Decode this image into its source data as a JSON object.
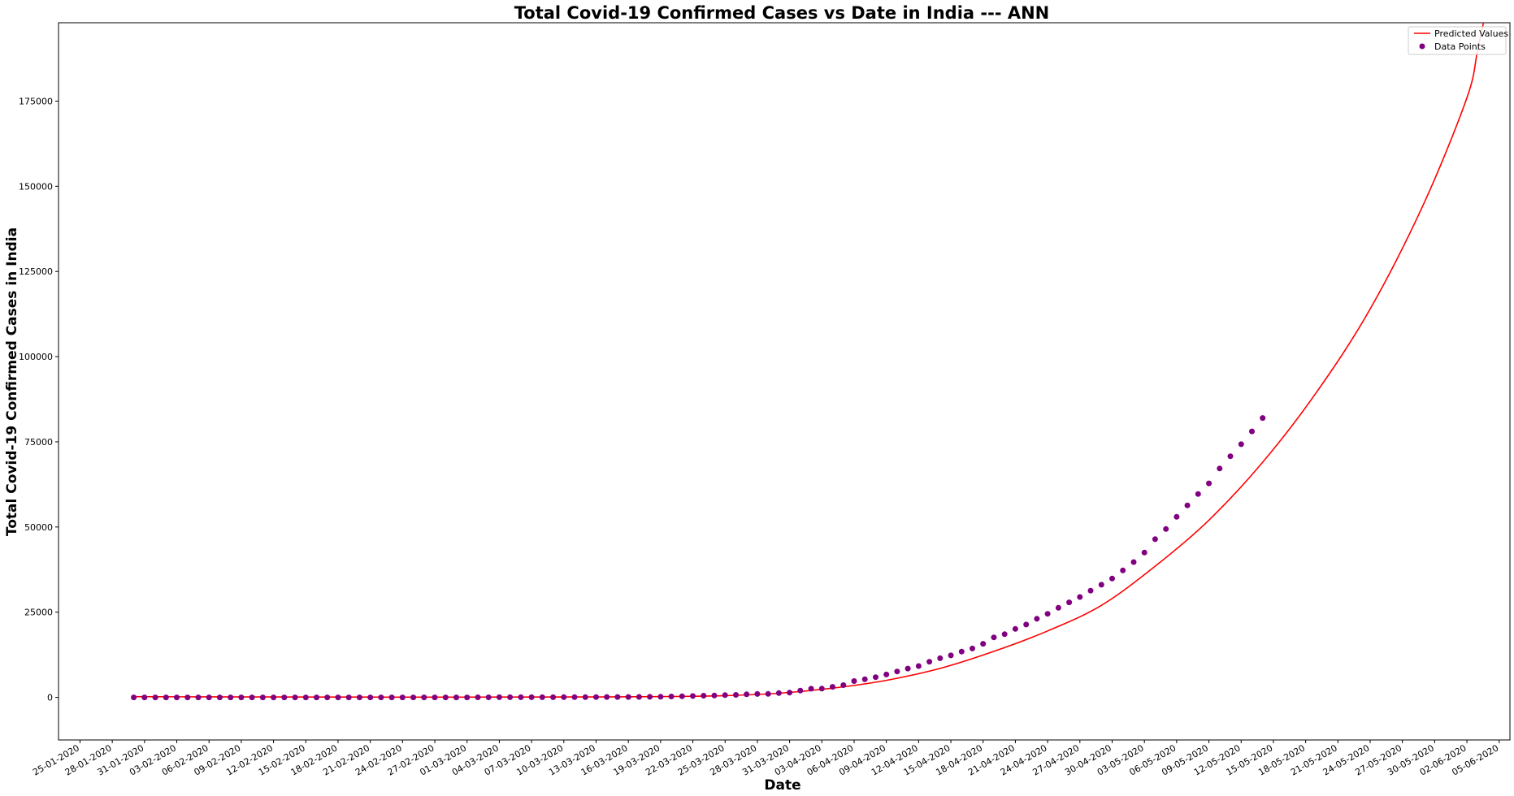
{
  "chart_data": {
    "type": "line",
    "title": "Total Covid-19 Confirmed Cases vs Date in India --- ANN",
    "xlabel": "Date",
    "ylabel": "Total Covid-19 Confirmed Cases in India",
    "x_range": [
      "2020-01-23",
      "2020-06-06"
    ],
    "ylim": [
      -12500,
      198000
    ],
    "y_ticks": [
      0,
      25000,
      50000,
      75000,
      100000,
      125000,
      150000,
      175000
    ],
    "x_ticks": [
      "25-01-2020",
      "28-01-2020",
      "31-01-2020",
      "03-02-2020",
      "06-02-2020",
      "09-02-2020",
      "12-02-2020",
      "15-02-2020",
      "18-02-2020",
      "21-02-2020",
      "24-02-2020",
      "27-02-2020",
      "01-03-2020",
      "04-03-2020",
      "07-03-2020",
      "10-03-2020",
      "13-03-2020",
      "16-03-2020",
      "19-03-2020",
      "22-03-2020",
      "25-03-2020",
      "28-03-2020",
      "31-03-2020",
      "03-04-2020",
      "06-04-2020",
      "09-04-2020",
      "12-04-2020",
      "15-04-2020",
      "18-04-2020",
      "21-04-2020",
      "24-04-2020",
      "27-04-2020",
      "30-04-2020",
      "03-05-2020",
      "06-05-2020",
      "09-05-2020",
      "12-05-2020",
      "15-05-2020",
      "18-05-2020",
      "21-05-2020",
      "24-05-2020",
      "27-05-2020",
      "30-05-2020",
      "02-06-2020",
      "05-06-2020"
    ],
    "grid": false,
    "legend_position": "top-right",
    "series": [
      {
        "name": "Predicted Values",
        "kind": "line",
        "color": "#ff0000",
        "points": [
          [
            "2020-01-30",
            200
          ],
          [
            "2020-02-05",
            150
          ],
          [
            "2020-02-12",
            100
          ],
          [
            "2020-02-19",
            80
          ],
          [
            "2020-02-26",
            60
          ],
          [
            "2020-03-04",
            80
          ],
          [
            "2020-03-11",
            100
          ],
          [
            "2020-03-15",
            150
          ],
          [
            "2020-03-20",
            250
          ],
          [
            "2020-03-25",
            500
          ],
          [
            "2020-03-30",
            1200
          ],
          [
            "2020-04-04",
            2700
          ],
          [
            "2020-04-09",
            5000
          ],
          [
            "2020-04-14",
            8500
          ],
          [
            "2020-04-19",
            13500
          ],
          [
            "2020-04-24",
            19500
          ],
          [
            "2020-04-29",
            27000
          ],
          [
            "2020-05-04",
            38500
          ],
          [
            "2020-05-09",
            52000
          ],
          [
            "2020-05-14",
            69000
          ],
          [
            "2020-05-19",
            89500
          ],
          [
            "2020-05-24",
            114000
          ],
          [
            "2020-05-29",
            145000
          ],
          [
            "2020-06-02",
            176000
          ],
          [
            "2020-06-03",
            190000
          ],
          [
            "2020-06-04",
            205000
          ]
        ]
      },
      {
        "name": "Data Points",
        "kind": "scatter",
        "color": "#800080",
        "start_date": "2020-01-30",
        "values": [
          1,
          1,
          1,
          2,
          3,
          3,
          3,
          3,
          3,
          3,
          3,
          3,
          3,
          3,
          3,
          3,
          3,
          3,
          3,
          3,
          3,
          3,
          3,
          3,
          3,
          3,
          3,
          3,
          3,
          3,
          3,
          3,
          5,
          5,
          28,
          30,
          31,
          34,
          39,
          43,
          56,
          62,
          73,
          82,
          102,
          113,
          119,
          142,
          156,
          194,
          244,
          330,
          396,
          499,
          536,
          657,
          727,
          887,
          987,
          1024,
          1251,
          1397,
          1998,
          2543,
          2567,
          3082,
          3588,
          4778,
          5311,
          5916,
          6725,
          7598,
          8446,
          9205,
          10453,
          11487,
          12322,
          13430,
          14352,
          15722,
          17615,
          18539,
          20080,
          21370,
          23077,
          24530,
          26283,
          27890,
          29451,
          31324,
          33062,
          34863,
          37257,
          39699,
          42505,
          46437,
          49400,
          52987,
          56351,
          59695,
          62808,
          67161,
          70768,
          74292,
          78055,
          81997
        ]
      }
    ]
  }
}
